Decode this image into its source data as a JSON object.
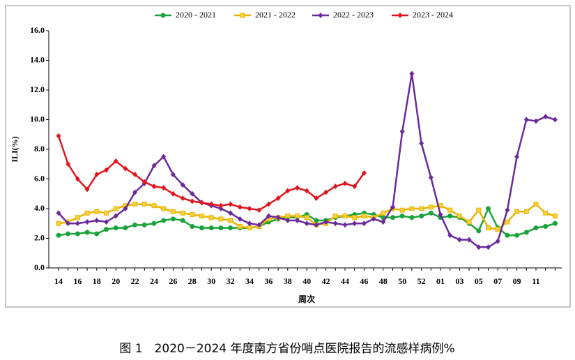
{
  "chart_data": {
    "type": "line",
    "caption": "图 1　2020－2024 年度南方省份哨点医院报告的流感样病例%",
    "ylabel": "ILI(%)",
    "xlabel": "周次",
    "categories": [
      "14",
      null,
      "16",
      null,
      "18",
      null,
      "20",
      null,
      "22",
      null,
      "24",
      null,
      "26",
      null,
      "28",
      null,
      "30",
      null,
      "32",
      null,
      "34",
      null,
      "36",
      null,
      "38",
      null,
      "40",
      null,
      "42",
      null,
      "44",
      null,
      "46",
      null,
      "48",
      null,
      "50",
      null,
      "52",
      null,
      "01",
      null,
      "03",
      null,
      "05",
      null,
      "07",
      null,
      "09",
      null,
      "11",
      null,
      null
    ],
    "ylim": [
      0,
      16
    ],
    "yticks": [
      {
        "value": 0,
        "label": "0.0"
      },
      {
        "value": 2,
        "label": "2.0"
      },
      {
        "value": 4,
        "label": "4.0"
      },
      {
        "value": 6,
        "label": "6.0"
      },
      {
        "value": 8,
        "label": "8.0"
      },
      {
        "value": 10,
        "label": "10.0"
      },
      {
        "value": 12,
        "label": "12.0"
      },
      {
        "value": 14,
        "label": "14.0"
      },
      {
        "value": 16,
        "label": "16.0"
      }
    ],
    "series": [
      {
        "name": "2020 - 2021",
        "color": "#1aa33a",
        "marker": "circle",
        "values": [
          2.2,
          2.3,
          2.3,
          2.4,
          2.3,
          2.6,
          2.7,
          2.7,
          2.9,
          2.9,
          3.0,
          3.2,
          3.3,
          3.2,
          2.8,
          2.7,
          2.7,
          2.7,
          2.7,
          2.7,
          2.7,
          2.8,
          3.1,
          3.3,
          3.4,
          3.4,
          3.6,
          3.2,
          3.2,
          3.4,
          3.5,
          3.6,
          3.7,
          3.6,
          3.4,
          3.4,
          3.5,
          3.4,
          3.5,
          3.7,
          3.4,
          3.5,
          3.4,
          3.0,
          2.5,
          4.0,
          2.7,
          2.2,
          2.2,
          2.4,
          2.7,
          2.8,
          3.0
        ]
      },
      {
        "name": "2021 - 2022",
        "color": "#e8b400",
        "marker": "square",
        "values": [
          3.0,
          3.1,
          3.4,
          3.7,
          3.8,
          3.7,
          4.0,
          4.2,
          4.3,
          4.3,
          4.2,
          4.0,
          3.8,
          3.7,
          3.6,
          3.5,
          3.4,
          3.3,
          3.2,
          2.8,
          2.7,
          2.8,
          3.3,
          3.4,
          3.5,
          3.5,
          3.4,
          2.9,
          3.0,
          3.5,
          3.5,
          3.4,
          3.5,
          3.4,
          3.7,
          4.0,
          3.9,
          4.0,
          4.0,
          4.1,
          4.2,
          3.9,
          3.5,
          3.1,
          3.9,
          2.7,
          2.6,
          3.1,
          3.8,
          3.8,
          4.3,
          3.7,
          3.5
        ]
      },
      {
        "name": "2022 - 2023",
        "color": "#6a2a9a",
        "marker": "diamond",
        "values": [
          3.7,
          3.0,
          3.0,
          3.1,
          3.2,
          3.1,
          3.5,
          4.0,
          5.1,
          5.7,
          6.9,
          7.5,
          6.3,
          5.6,
          5.0,
          4.4,
          4.2,
          4.0,
          3.7,
          3.3,
          3.0,
          2.9,
          3.5,
          3.4,
          3.2,
          3.2,
          3.0,
          2.9,
          3.1,
          3.0,
          2.9,
          3.0,
          3.0,
          3.3,
          3.1,
          4.1,
          9.2,
          13.1,
          8.4,
          6.1,
          3.6,
          2.2,
          1.9,
          1.9,
          1.4,
          1.4,
          1.8,
          3.9,
          7.5,
          10.0,
          9.9,
          10.2,
          10.0
        ]
      },
      {
        "name": "2023 - 2024",
        "color": "#e0161e",
        "marker": "diamond",
        "values": [
          8.9,
          7.0,
          6.0,
          5.3,
          6.3,
          6.6,
          7.2,
          6.7,
          6.3,
          5.8,
          5.5,
          5.4,
          5.0,
          4.7,
          4.5,
          4.4,
          4.3,
          4.2,
          4.3,
          4.1,
          4.0,
          3.9,
          4.3,
          4.7,
          5.2,
          5.4,
          5.2,
          4.7,
          5.1,
          5.5,
          5.7,
          5.5,
          6.4,
          null,
          null,
          null,
          null,
          null,
          null,
          null,
          null,
          null,
          null,
          null,
          null,
          null,
          null,
          null,
          null,
          null,
          null,
          null,
          null
        ]
      }
    ]
  }
}
